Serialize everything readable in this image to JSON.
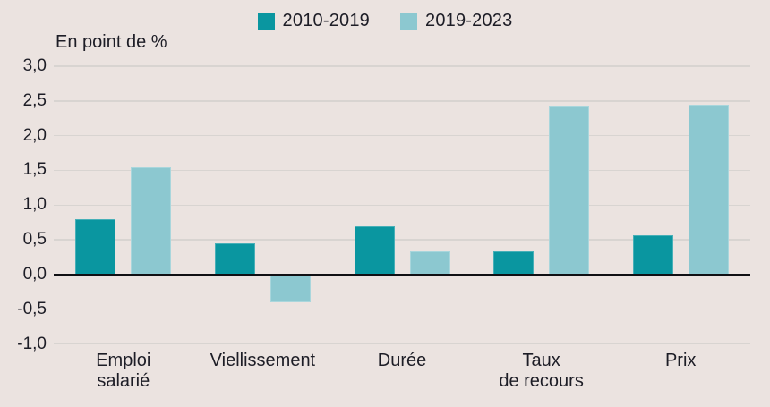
{
  "colors": {
    "background": "#ebe3e0",
    "text": "#1d1d26",
    "gridline": "#d8d4d1",
    "zero_axis": "#101014",
    "series_dark": "#0a96a0",
    "series_light": "#8cc8d0"
  },
  "chart_data": {
    "type": "bar",
    "title": "",
    "ylabel": "En point de %",
    "xlabel": "",
    "categories": [
      "Emploi\nsalarié",
      "Viellissement",
      "Durée",
      "Taux\nde recours",
      "Prix"
    ],
    "series": [
      {
        "name": "2010-2019",
        "color": "#0a96a0",
        "values": [
          0.8,
          0.45,
          0.7,
          0.33,
          0.57
        ]
      },
      {
        "name": "2019-2023",
        "color": "#8cc8d0",
        "values": [
          1.55,
          -0.4,
          0.33,
          2.42,
          2.44
        ]
      }
    ],
    "ylim": [
      -1.0,
      3.0
    ],
    "ytick_step": 0.5,
    "ytick_labels": [
      "3,0",
      "2,5",
      "2,0",
      "1,5",
      "1,0",
      "0,5",
      "0,0",
      "-0,5",
      "-1,0"
    ],
    "grid": true,
    "legend_position": "top-center",
    "decimal_separator": ","
  }
}
